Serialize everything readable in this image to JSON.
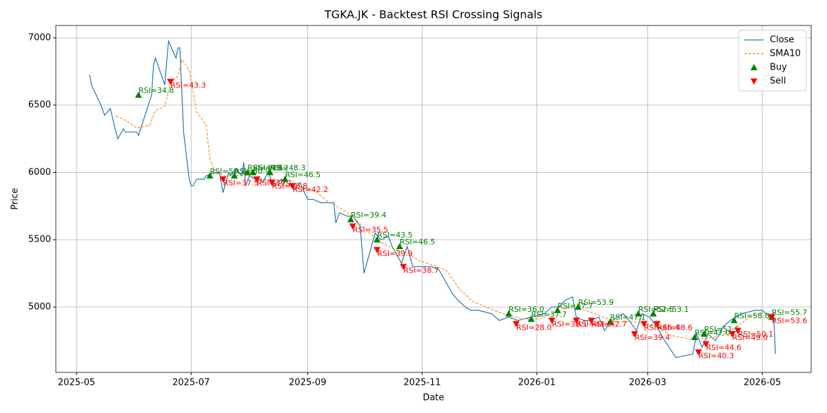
{
  "chart_data": {
    "type": "line",
    "title": "TGKA.JK - Backtest RSI Crossing Signals",
    "x_label": "Date",
    "y_label": "Price",
    "xlim": [
      "2025-04-20",
      "2026-05-27"
    ],
    "ylim": [
      4514,
      7092
    ],
    "xticks": [
      "2025-05",
      "2025-07",
      "2025-09",
      "2025-11",
      "2026-01",
      "2026-03",
      "2026-05"
    ],
    "yticks": [
      5000,
      5500,
      6000,
      6500,
      7000
    ],
    "grid": true,
    "legend": "upper right",
    "series": [
      {
        "name": "Close",
        "type": "line",
        "color": "#1f77b4",
        "dashed": false,
        "x": [
          "2025-05-08",
          "2025-05-09",
          "2025-05-14",
          "2025-05-16",
          "2025-05-19",
          "2025-05-22",
          "2025-05-23",
          "2025-05-26",
          "2025-05-27",
          "2025-06-02",
          "2025-06-03",
          "2025-06-10",
          "2025-06-11",
          "2025-06-12",
          "2025-06-17",
          "2025-06-18",
          "2025-06-19",
          "2025-06-23",
          "2025-06-24",
          "2025-06-25",
          "2025-06-27",
          "2025-06-30",
          "2025-07-01",
          "2025-07-02",
          "2025-07-04",
          "2025-07-08",
          "2025-07-09",
          "2025-07-14",
          "2025-07-16",
          "2025-07-18",
          "2025-07-21",
          "2025-07-22",
          "2025-07-25",
          "2025-07-28",
          "2025-07-29",
          "2025-07-30",
          "2025-08-01",
          "2025-08-04",
          "2025-08-07",
          "2025-08-08",
          "2025-08-11",
          "2025-08-14",
          "2025-08-18",
          "2025-08-21",
          "2025-08-25",
          "2025-08-28",
          "2025-09-01",
          "2025-09-04",
          "2025-09-08",
          "2025-09-12",
          "2025-09-15",
          "2025-09-16",
          "2025-09-18",
          "2025-09-22",
          "2025-09-25",
          "2025-09-29",
          "2025-10-01",
          "2025-10-07",
          "2025-10-10",
          "2025-10-14",
          "2025-10-16",
          "2025-10-21",
          "2025-10-24",
          "2025-10-27",
          "2025-10-30",
          "2025-11-03",
          "2025-11-06",
          "2025-11-10",
          "2025-11-13",
          "2025-11-17",
          "2025-11-20",
          "2025-11-24",
          "2025-11-27",
          "2025-12-01",
          "2025-12-08",
          "2025-12-12",
          "2025-12-17",
          "2025-12-22",
          "2025-12-29",
          "2026-01-05",
          "2026-01-09",
          "2026-01-13",
          "2026-01-16",
          "2026-01-20",
          "2026-01-22",
          "2026-01-26",
          "2026-01-30",
          "2026-02-03",
          "2026-02-06",
          "2026-02-10",
          "2026-02-16",
          "2026-02-19",
          "2026-02-23",
          "2026-02-26",
          "2026-03-02",
          "2026-03-06",
          "2026-03-10",
          "2026-03-16",
          "2026-03-25",
          "2026-03-27",
          "2026-03-30",
          "2026-04-02",
          "2026-04-06",
          "2026-04-10",
          "2026-04-14",
          "2026-04-20",
          "2026-04-27",
          "2026-05-01",
          "2026-05-05",
          "2026-05-07",
          "2026-05-08"
        ],
        "values": [
          6725,
          6650,
          6500,
          6425,
          6475,
          6300,
          6250,
          6325,
          6300,
          6300,
          6275,
          6575,
          6800,
          6850,
          6650,
          6825,
          6975,
          6850,
          6925,
          6925,
          6300,
          5950,
          5900,
          5900,
          5950,
          5950,
          5975,
          6000,
          6000,
          5850,
          6000,
          5975,
          6025,
          5975,
          6075,
          5900,
          5975,
          5950,
          5950,
          5925,
          6000,
          5900,
          5950,
          5925,
          5875,
          5925,
          5800,
          5800,
          5775,
          5775,
          5775,
          5625,
          5700,
          5675,
          5675,
          5600,
          5250,
          5550,
          5500,
          5525,
          5450,
          5325,
          5450,
          5300,
          5300,
          5300,
          5300,
          5275,
          5200,
          5100,
          5050,
          5000,
          4975,
          4975,
          4950,
          4900,
          4925,
          4900,
          4925,
          4950,
          5000,
          5000,
          5050,
          5075,
          4925,
          4900,
          4900,
          4925,
          4825,
          4900,
          4950,
          4900,
          4825,
          4950,
          4925,
          4850,
          4750,
          4625,
          4650,
          4800,
          4700,
          4800,
          4750,
          4850,
          4900,
          4950,
          4975,
          4975,
          4925,
          4950,
          4650
        ]
      },
      {
        "name": "SMA10",
        "type": "line",
        "color": "#ff7f0e",
        "dashed": true,
        "x": [
          "2025-05-22",
          "2025-05-28",
          "2025-06-02",
          "2025-06-09",
          "2025-06-12",
          "2025-06-17",
          "2025-06-20",
          "2025-06-24",
          "2025-06-26",
          "2025-06-30",
          "2025-07-04",
          "2025-07-09",
          "2025-07-11",
          "2025-07-14",
          "2025-07-18",
          "2025-07-25",
          "2025-08-01",
          "2025-08-08",
          "2025-08-15",
          "2025-08-22",
          "2025-08-29",
          "2025-09-05",
          "2025-09-12",
          "2025-09-19",
          "2025-09-26",
          "2025-10-03",
          "2025-10-10",
          "2025-10-17",
          "2025-10-24",
          "2025-10-31",
          "2025-11-07",
          "2025-11-14",
          "2025-11-21",
          "2025-11-28",
          "2025-12-05",
          "2025-12-12",
          "2025-12-19",
          "2025-12-26",
          "2026-01-02",
          "2026-01-09",
          "2026-01-16",
          "2026-01-23",
          "2026-01-30",
          "2026-02-06",
          "2026-02-13",
          "2026-02-20",
          "2026-02-27",
          "2026-03-06",
          "2026-03-13",
          "2026-03-20",
          "2026-03-27",
          "2026-04-03",
          "2026-04-10",
          "2026-04-17",
          "2026-04-24",
          "2026-05-01",
          "2026-05-08"
        ],
        "values": [
          6420,
          6380,
          6330,
          6350,
          6460,
          6490,
          6660,
          6720,
          6840,
          6760,
          6450,
          6350,
          6100,
          6000,
          5975,
          5975,
          5975,
          5950,
          5950,
          5920,
          5890,
          5860,
          5780,
          5730,
          5660,
          5560,
          5480,
          5430,
          5400,
          5340,
          5310,
          5270,
          5130,
          5040,
          5000,
          4960,
          4930,
          4910,
          4910,
          4950,
          4990,
          4990,
          4960,
          4920,
          4890,
          4890,
          4880,
          4850,
          4790,
          4770,
          4760,
          4770,
          4790,
          4850,
          4920,
          4960,
          4940
        ]
      },
      {
        "name": "Buy",
        "type": "scatter",
        "marker": "triangle-up",
        "color": "#008000",
        "x": [
          "2025-06-03",
          "2025-07-11",
          "2025-07-24",
          "2025-07-31",
          "2025-08-03",
          "2025-08-12",
          "2025-08-20",
          "2025-09-24",
          "2025-10-08",
          "2025-10-20",
          "2025-12-17",
          "2025-12-29",
          "2026-01-12",
          "2026-01-23",
          "2026-02-09",
          "2026-02-24",
          "2026-03-04",
          "2026-03-26",
          "2026-03-31",
          "2026-04-16",
          "2026-05-06"
        ],
        "values": [
          6575,
          5975,
          5975,
          6000,
          6000,
          6000,
          5950,
          5650,
          5500,
          5450,
          4950,
          4910,
          4975,
          5000,
          4890,
          4950,
          4950,
          4775,
          4800,
          4900,
          4925
        ],
        "value_labels": [
          "RSI=34.8",
          "RSI=50.2",
          "RSI=50.9",
          "RSI=49.5",
          "RSI=48.2",
          "RSI=48.3",
          "RSI=46.5",
          "RSI=39.4",
          "RSI=43.5",
          "RSI=46.5",
          "RSI=36.0",
          "RSI=37.7",
          "RSI=47.7",
          "RSI=53.9",
          "RSI=47.1",
          "RSI=52.5",
          "RSI=53.1",
          "RSI=47.0",
          "RSI=51.5",
          "RSI=58.0",
          "RSI=55.7"
        ]
      },
      {
        "name": "Sell",
        "type": "scatter",
        "marker": "triangle-down",
        "color": "#ff0000",
        "x": [
          "2025-06-20",
          "2025-07-18",
          "2025-08-05",
          "2025-08-13",
          "2025-08-24",
          "2025-09-25",
          "2025-10-08",
          "2025-10-22",
          "2025-12-21",
          "2026-01-09",
          "2026-01-22",
          "2026-01-30",
          "2026-02-22",
          "2026-02-27",
          "2026-03-06",
          "2026-03-28",
          "2026-04-01",
          "2026-04-15",
          "2026-04-18",
          "2026-05-06"
        ],
        "values": [
          6675,
          5950,
          5950,
          5925,
          5900,
          5600,
          5425,
          5300,
          4875,
          4900,
          4900,
          4900,
          4800,
          4875,
          4875,
          4665,
          4725,
          4800,
          4825,
          4925
        ],
        "value_labels": [
          "RSI=43.3",
          "RSI=37.5",
          "RSI=39.1",
          "RSI=40.8",
          "RSI=42.2",
          "RSI=35.5",
          "RSI=39.9",
          "RSI=38.7",
          "RSI=28.0",
          "RSI=38.1",
          "RSI=43.3",
          "RSI=42.7",
          "RSI=39.4",
          "RSI=46.4",
          "RSI=48.6",
          "RSI=40.3",
          "RSI=44.6",
          "RSI=49.0",
          "RSI=50.1",
          "RSI=53.6"
        ]
      }
    ]
  }
}
